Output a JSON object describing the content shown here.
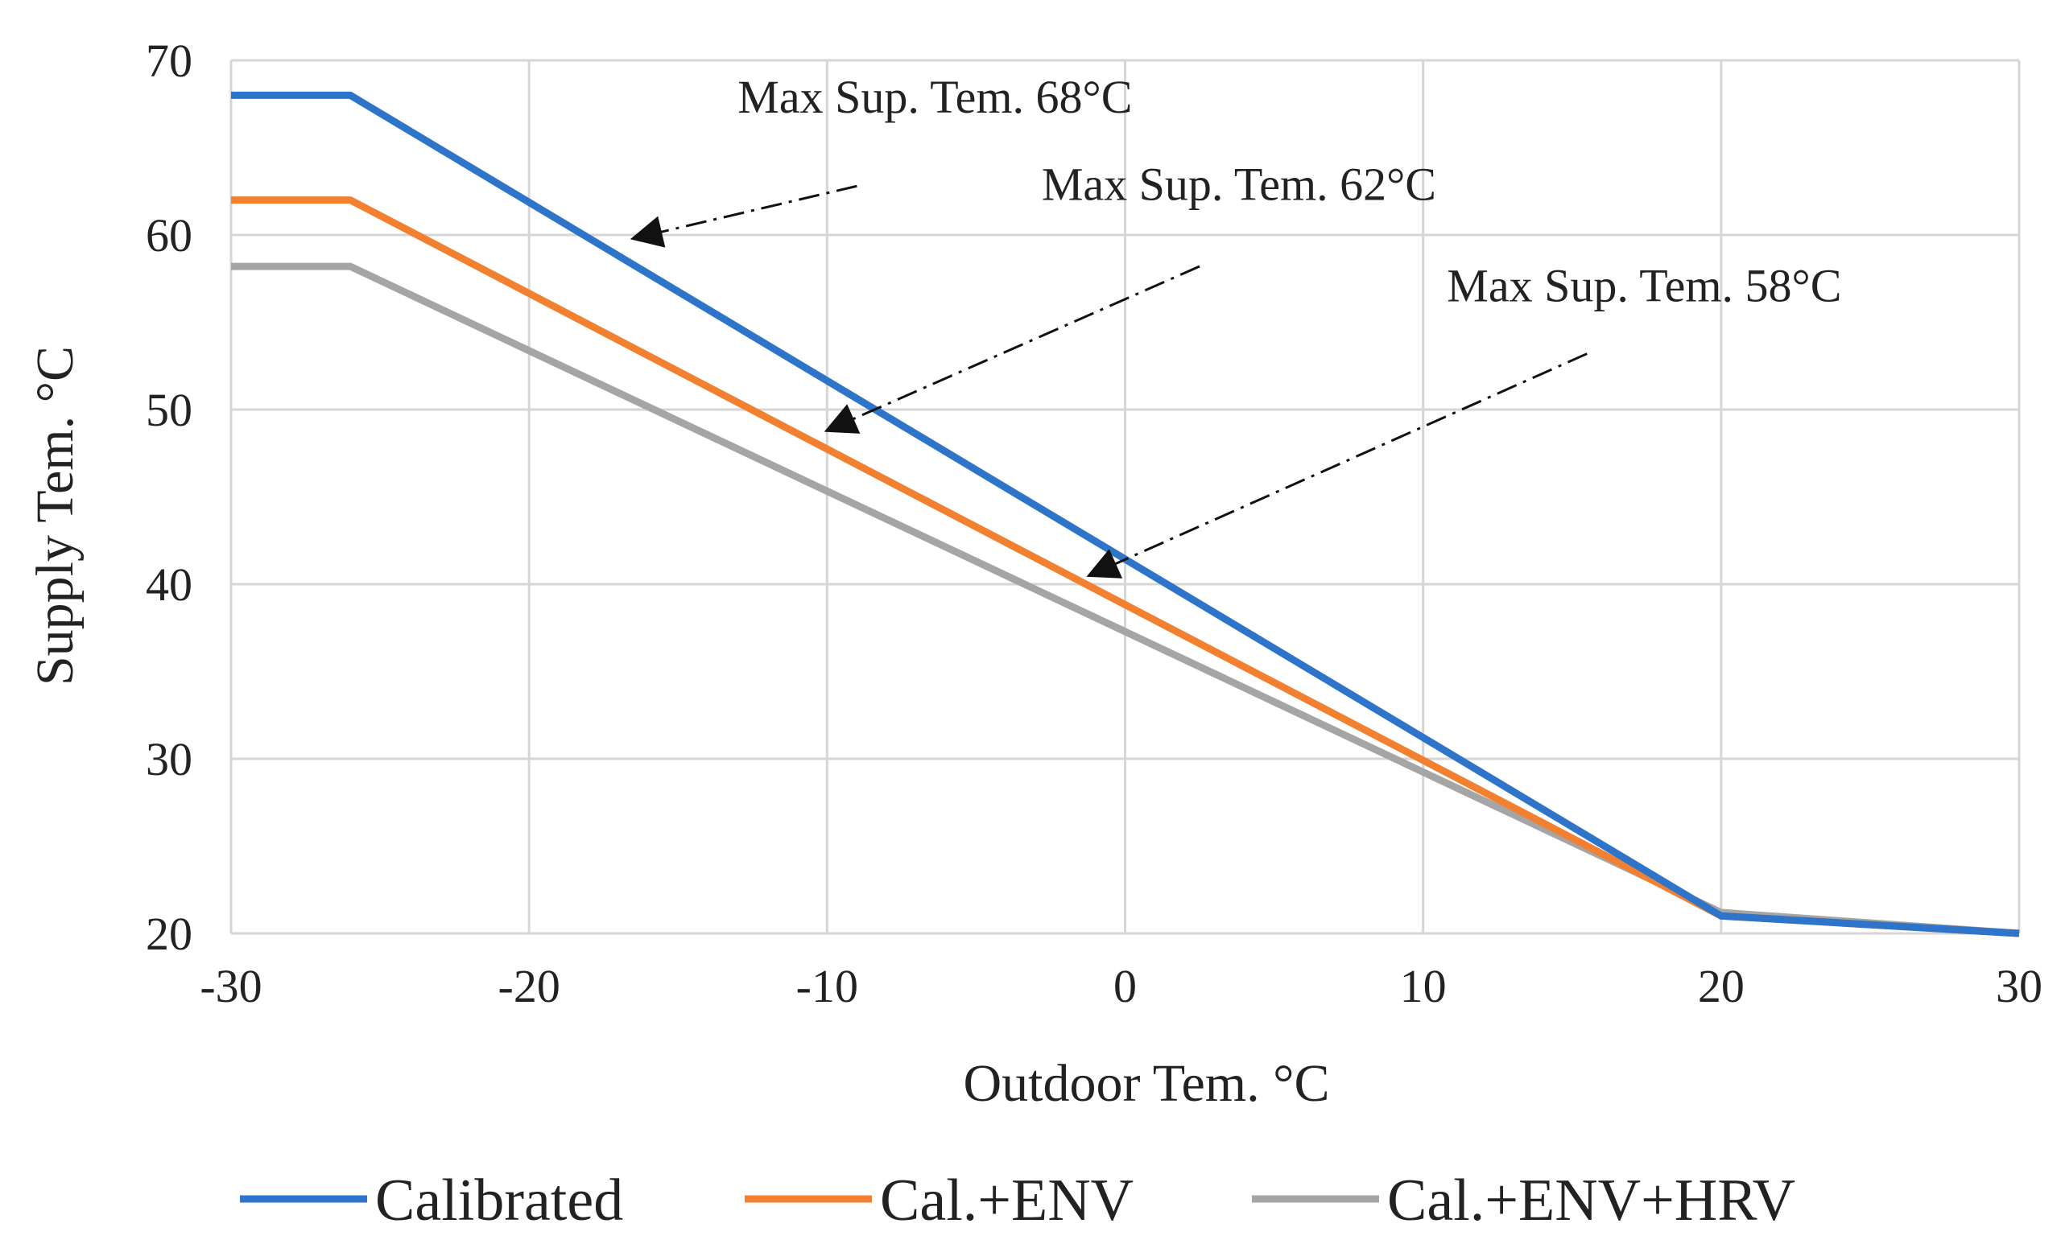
{
  "chart_data": {
    "type": "line",
    "title": "",
    "xlabel": "Outdoor Tem. °C",
    "ylabel": "Supply Tem. °C",
    "xlim": [
      -30,
      30
    ],
    "ylim": [
      20,
      70
    ],
    "xticks": [
      -30,
      -20,
      -10,
      0,
      10,
      20,
      30
    ],
    "yticks": [
      20,
      30,
      40,
      50,
      60,
      70
    ],
    "xtick_labels": [
      "-30",
      "-20",
      "-10",
      "0",
      "10",
      "20",
      "30"
    ],
    "ytick_labels": [
      "20",
      "30",
      "40",
      "50",
      "60",
      "70"
    ],
    "grid": true,
    "legend_position": "bottom",
    "series": [
      {
        "name": "Calibrated",
        "color": "#2E74C8",
        "points": [
          [
            -30,
            68
          ],
          [
            -26,
            68
          ],
          [
            20,
            21
          ],
          [
            30,
            20
          ]
        ]
      },
      {
        "name": "Cal.+ENV",
        "color": "#F28031",
        "points": [
          [
            -30,
            62
          ],
          [
            -26,
            62
          ],
          [
            20,
            21
          ],
          [
            30,
            20
          ]
        ]
      },
      {
        "name": "Cal.+ENV+HRV",
        "color": "#A5A5A5",
        "points": [
          [
            -30,
            58.2
          ],
          [
            -26,
            58.2
          ],
          [
            20,
            21.2
          ],
          [
            30,
            20
          ]
        ]
      }
    ],
    "annotations": [
      {
        "text": "Max Sup. Tem. 68°C",
        "text_at": [
          -13,
          67
        ],
        "arrow_from": [
          -9,
          62.8
        ],
        "arrow_to": [
          -16.5,
          59.8
        ]
      },
      {
        "text": "Max Sup. Tem. 62°C",
        "text_at": [
          -2.8,
          62
        ],
        "arrow_from": [
          2.5,
          58.2
        ],
        "arrow_to": [
          -10,
          48.8
        ]
      },
      {
        "text": "Max Sup. Tem. 58°C",
        "text_at": [
          10.8,
          56.2
        ],
        "arrow_from": [
          15.5,
          53.2
        ],
        "arrow_to": [
          -1.2,
          40.5
        ]
      }
    ]
  }
}
